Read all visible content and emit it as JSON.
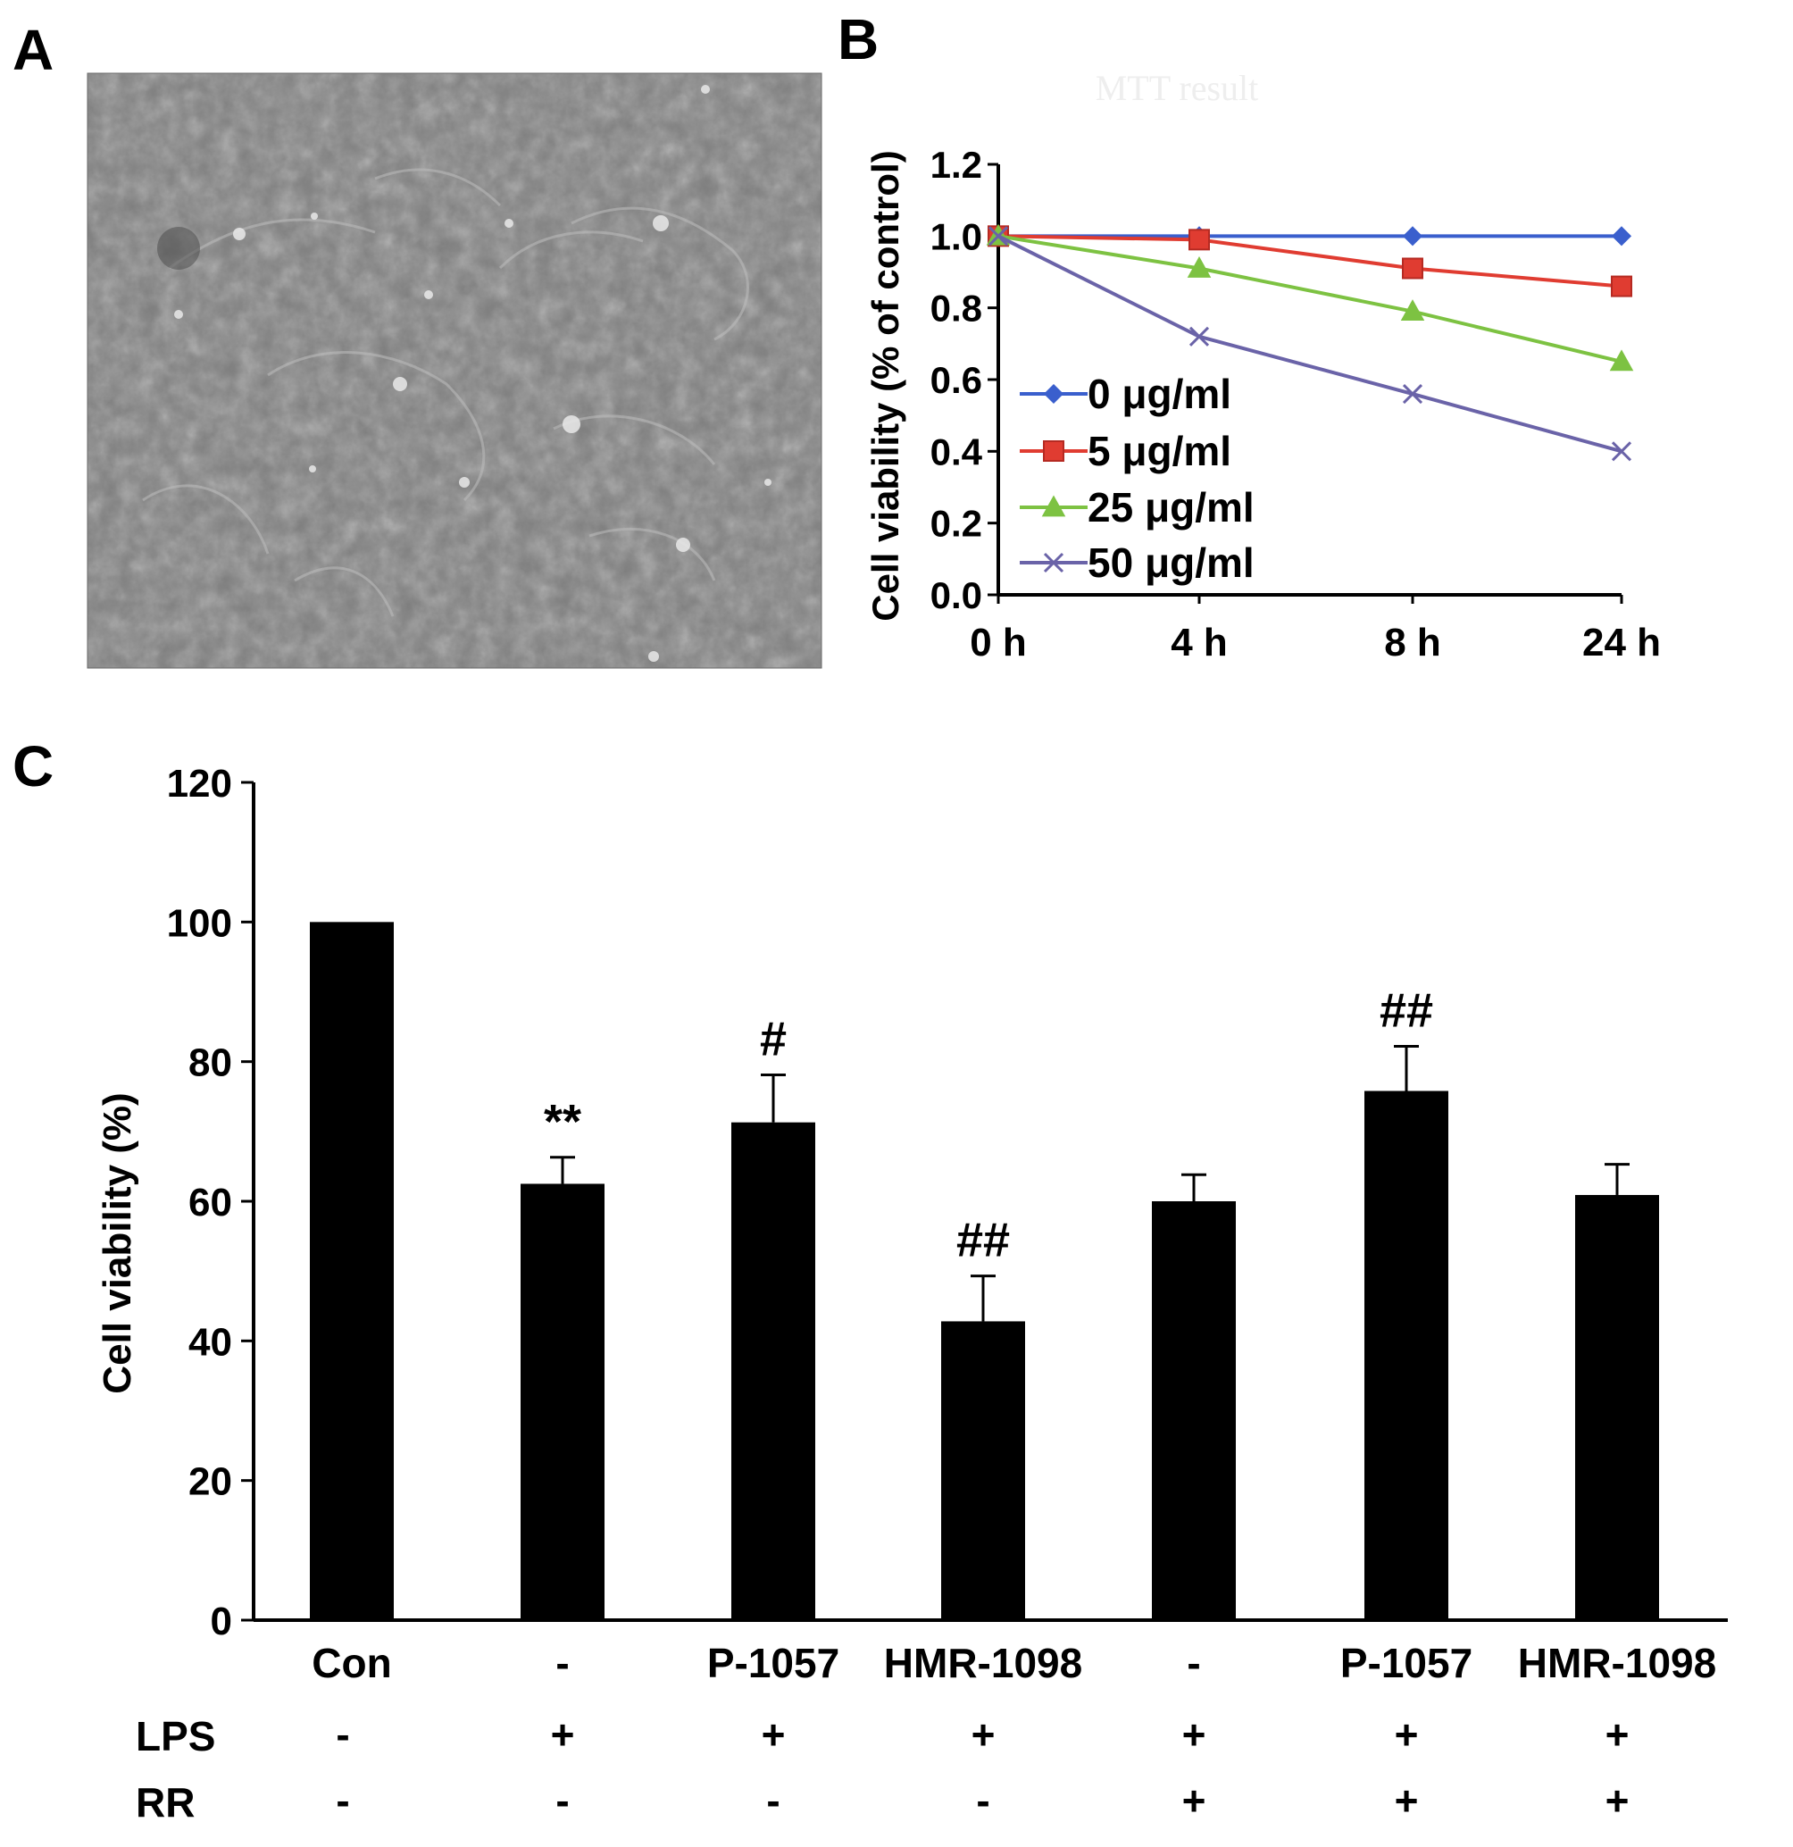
{
  "panels": {
    "a": {
      "letter": "A"
    },
    "b": {
      "letter": "B"
    },
    "c": {
      "letter": "C"
    }
  },
  "chart_data": [
    {
      "id": "panel-b",
      "type": "line",
      "title": "",
      "faint_text": "MTT result",
      "xlabel": "",
      "ylabel": "Cell viability (% of control)",
      "categories": [
        "0 h",
        "4 h",
        "8 h",
        "24 h"
      ],
      "ylim": [
        0.0,
        1.2
      ],
      "yticks": [
        "0.0",
        "0.2",
        "0.4",
        "0.6",
        "0.8",
        "1.0",
        "1.2"
      ],
      "grid": false,
      "legend": "inside-lower-left",
      "series": [
        {
          "name": "0 μg/ml",
          "color": "#3a5fcd",
          "marker": "diamond",
          "values": [
            1.0,
            1.0,
            1.0,
            1.0
          ]
        },
        {
          "name": "5 μg/ml",
          "color": "#e03c31",
          "marker": "square",
          "values": [
            1.0,
            0.99,
            0.91,
            0.86
          ]
        },
        {
          "name": "25 μg/ml",
          "color": "#7dc242",
          "marker": "triangle",
          "values": [
            1.0,
            0.91,
            0.79,
            0.65
          ]
        },
        {
          "name": "50 μg/ml",
          "color": "#6a63a8",
          "marker": "x",
          "values": [
            1.0,
            0.72,
            0.56,
            0.4
          ]
        }
      ]
    },
    {
      "id": "panel-c",
      "type": "bar",
      "title": "",
      "xlabel": "",
      "ylabel": "Cell viability (%)",
      "ylim": [
        0,
        120
      ],
      "yticks": [
        "0",
        "20",
        "40",
        "60",
        "80",
        "100",
        "120"
      ],
      "grid": false,
      "bar_color": "#000000",
      "categories": [
        "Con",
        "-",
        "P-1057",
        "HMR-1098",
        "-",
        "P-1057",
        "HMR-1098"
      ],
      "values": [
        100,
        62.5,
        71.3,
        42.8,
        60.0,
        75.8,
        60.9
      ],
      "errors": [
        0,
        3.8,
        6.8,
        6.5,
        3.8,
        6.4,
        4.4
      ],
      "annotations": [
        "",
        "**",
        "#",
        "##",
        "",
        "##",
        ""
      ],
      "row_labels": [
        "LPS",
        "RR"
      ],
      "lps": [
        "-",
        "+",
        "+",
        "+",
        "+",
        "+",
        "+"
      ],
      "rr": [
        "-",
        "-",
        "-",
        "-",
        "+",
        "+",
        "+"
      ]
    }
  ]
}
